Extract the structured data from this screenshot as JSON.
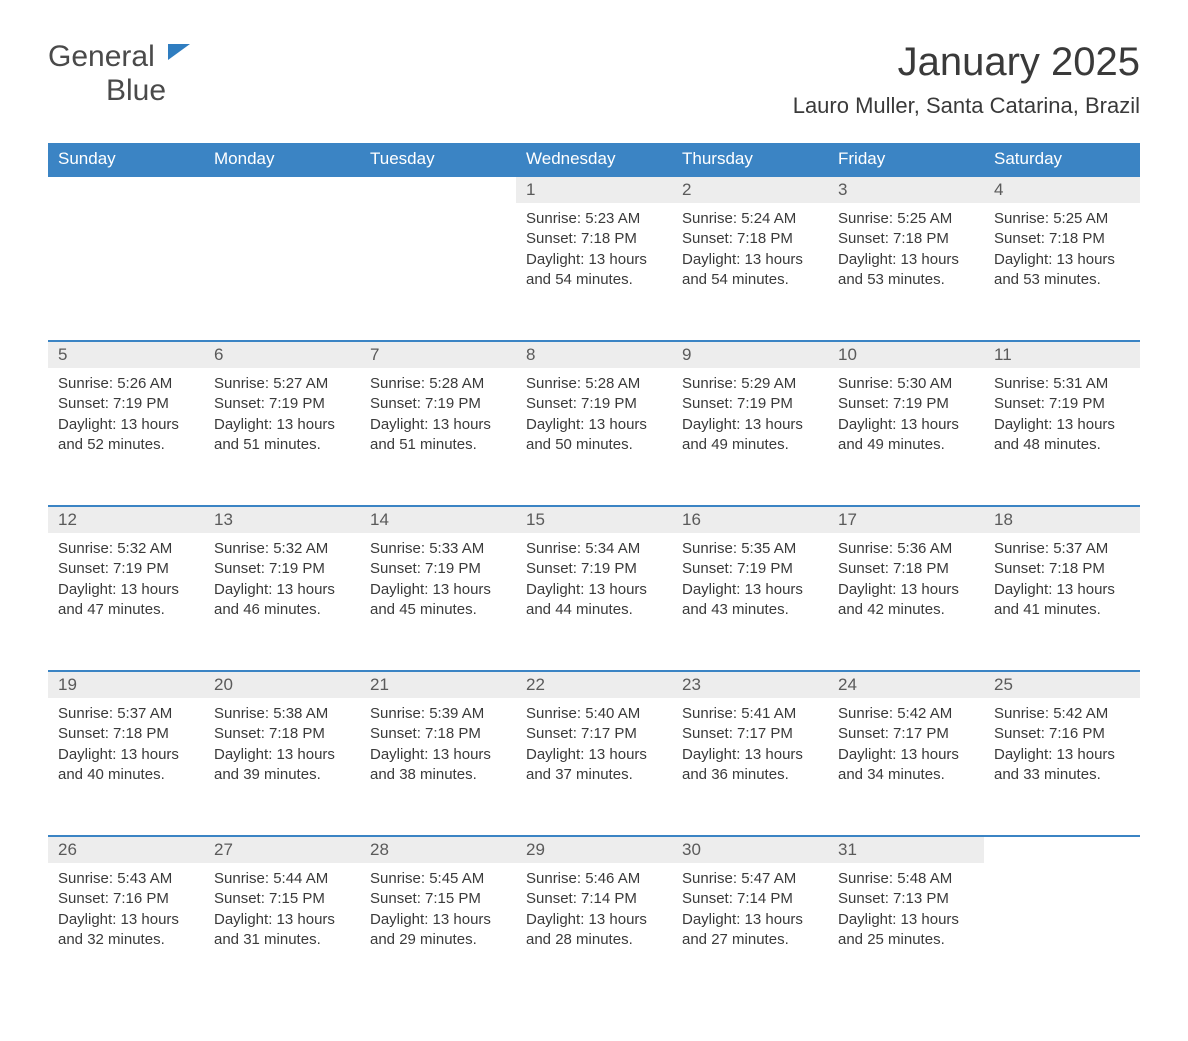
{
  "logo": {
    "word1": "General",
    "word2": "Blue"
  },
  "title": "January 2025",
  "location": "Lauro Muller, Santa Catarina, Brazil",
  "colors": {
    "header_bg": "#3b84c4",
    "header_text": "#ffffff",
    "daynum_bg": "#ededed",
    "row_divider": "#3b84c4",
    "body_text": "#3a3a3a",
    "logo_accent": "#2f7dc0",
    "page_bg": "#ffffff"
  },
  "typography": {
    "title_fontsize": 40,
    "location_fontsize": 22,
    "weekday_fontsize": 17,
    "daynum_fontsize": 17,
    "detail_fontsize": 15,
    "font_family": "Arial"
  },
  "weekdays": [
    "Sunday",
    "Monday",
    "Tuesday",
    "Wednesday",
    "Thursday",
    "Friday",
    "Saturday"
  ],
  "weeks": [
    [
      null,
      null,
      null,
      {
        "d": "1",
        "sr": "5:23 AM",
        "ss": "7:18 PM",
        "dl": "13 hours and 54 minutes."
      },
      {
        "d": "2",
        "sr": "5:24 AM",
        "ss": "7:18 PM",
        "dl": "13 hours and 54 minutes."
      },
      {
        "d": "3",
        "sr": "5:25 AM",
        "ss": "7:18 PM",
        "dl": "13 hours and 53 minutes."
      },
      {
        "d": "4",
        "sr": "5:25 AM",
        "ss": "7:18 PM",
        "dl": "13 hours and 53 minutes."
      }
    ],
    [
      {
        "d": "5",
        "sr": "5:26 AM",
        "ss": "7:19 PM",
        "dl": "13 hours and 52 minutes."
      },
      {
        "d": "6",
        "sr": "5:27 AM",
        "ss": "7:19 PM",
        "dl": "13 hours and 51 minutes."
      },
      {
        "d": "7",
        "sr": "5:28 AM",
        "ss": "7:19 PM",
        "dl": "13 hours and 51 minutes."
      },
      {
        "d": "8",
        "sr": "5:28 AM",
        "ss": "7:19 PM",
        "dl": "13 hours and 50 minutes."
      },
      {
        "d": "9",
        "sr": "5:29 AM",
        "ss": "7:19 PM",
        "dl": "13 hours and 49 minutes."
      },
      {
        "d": "10",
        "sr": "5:30 AM",
        "ss": "7:19 PM",
        "dl": "13 hours and 49 minutes."
      },
      {
        "d": "11",
        "sr": "5:31 AM",
        "ss": "7:19 PM",
        "dl": "13 hours and 48 minutes."
      }
    ],
    [
      {
        "d": "12",
        "sr": "5:32 AM",
        "ss": "7:19 PM",
        "dl": "13 hours and 47 minutes."
      },
      {
        "d": "13",
        "sr": "5:32 AM",
        "ss": "7:19 PM",
        "dl": "13 hours and 46 minutes."
      },
      {
        "d": "14",
        "sr": "5:33 AM",
        "ss": "7:19 PM",
        "dl": "13 hours and 45 minutes."
      },
      {
        "d": "15",
        "sr": "5:34 AM",
        "ss": "7:19 PM",
        "dl": "13 hours and 44 minutes."
      },
      {
        "d": "16",
        "sr": "5:35 AM",
        "ss": "7:19 PM",
        "dl": "13 hours and 43 minutes."
      },
      {
        "d": "17",
        "sr": "5:36 AM",
        "ss": "7:18 PM",
        "dl": "13 hours and 42 minutes."
      },
      {
        "d": "18",
        "sr": "5:37 AM",
        "ss": "7:18 PM",
        "dl": "13 hours and 41 minutes."
      }
    ],
    [
      {
        "d": "19",
        "sr": "5:37 AM",
        "ss": "7:18 PM",
        "dl": "13 hours and 40 minutes."
      },
      {
        "d": "20",
        "sr": "5:38 AM",
        "ss": "7:18 PM",
        "dl": "13 hours and 39 minutes."
      },
      {
        "d": "21",
        "sr": "5:39 AM",
        "ss": "7:18 PM",
        "dl": "13 hours and 38 minutes."
      },
      {
        "d": "22",
        "sr": "5:40 AM",
        "ss": "7:17 PM",
        "dl": "13 hours and 37 minutes."
      },
      {
        "d": "23",
        "sr": "5:41 AM",
        "ss": "7:17 PM",
        "dl": "13 hours and 36 minutes."
      },
      {
        "d": "24",
        "sr": "5:42 AM",
        "ss": "7:17 PM",
        "dl": "13 hours and 34 minutes."
      },
      {
        "d": "25",
        "sr": "5:42 AM",
        "ss": "7:16 PM",
        "dl": "13 hours and 33 minutes."
      }
    ],
    [
      {
        "d": "26",
        "sr": "5:43 AM",
        "ss": "7:16 PM",
        "dl": "13 hours and 32 minutes."
      },
      {
        "d": "27",
        "sr": "5:44 AM",
        "ss": "7:15 PM",
        "dl": "13 hours and 31 minutes."
      },
      {
        "d": "28",
        "sr": "5:45 AM",
        "ss": "7:15 PM",
        "dl": "13 hours and 29 minutes."
      },
      {
        "d": "29",
        "sr": "5:46 AM",
        "ss": "7:14 PM",
        "dl": "13 hours and 28 minutes."
      },
      {
        "d": "30",
        "sr": "5:47 AM",
        "ss": "7:14 PM",
        "dl": "13 hours and 27 minutes."
      },
      {
        "d": "31",
        "sr": "5:48 AM",
        "ss": "7:13 PM",
        "dl": "13 hours and 25 minutes."
      },
      null
    ]
  ],
  "labels": {
    "sunrise": "Sunrise: ",
    "sunset": "Sunset: ",
    "daylight": "Daylight: "
  }
}
